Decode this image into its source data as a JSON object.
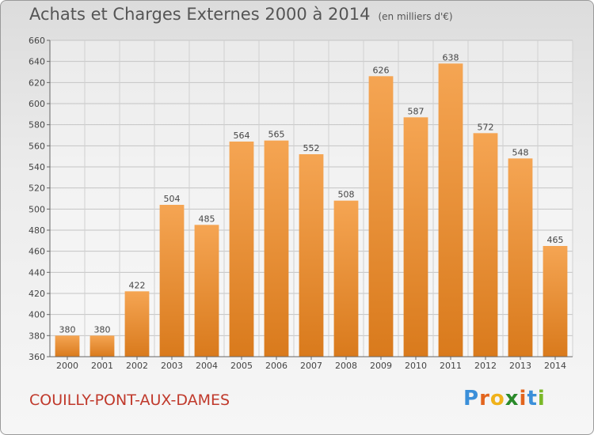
{
  "header": {
    "title": "Achats et Charges Externes 2000 à 2014",
    "subtitle": "(en milliers d'€)"
  },
  "footer": {
    "commune": "COUILLY-PONT-AUX-DAMES",
    "logo": "Proxiti"
  },
  "colors": {
    "bar_light": "#f5a553",
    "bar_dark": "#d97a1c",
    "logo": [
      "#3b8fd9",
      "#e2651e",
      "#f0b21a",
      "#2a8a2a",
      "#e2651e",
      "#3b8fd9",
      "#7ab828"
    ]
  },
  "chart_data": {
    "type": "bar",
    "categories": [
      "2000",
      "2001",
      "2002",
      "2003",
      "2004",
      "2005",
      "2006",
      "2007",
      "2008",
      "2009",
      "2010",
      "2011",
      "2012",
      "2013",
      "2014"
    ],
    "values": [
      380,
      380,
      422,
      504,
      485,
      564,
      565,
      552,
      508,
      626,
      587,
      638,
      572,
      548,
      465
    ],
    "ylim": [
      360,
      660
    ],
    "yticks": [
      360,
      380,
      400,
      420,
      440,
      460,
      480,
      500,
      520,
      540,
      560,
      580,
      600,
      620,
      640,
      660
    ],
    "grid": true
  }
}
